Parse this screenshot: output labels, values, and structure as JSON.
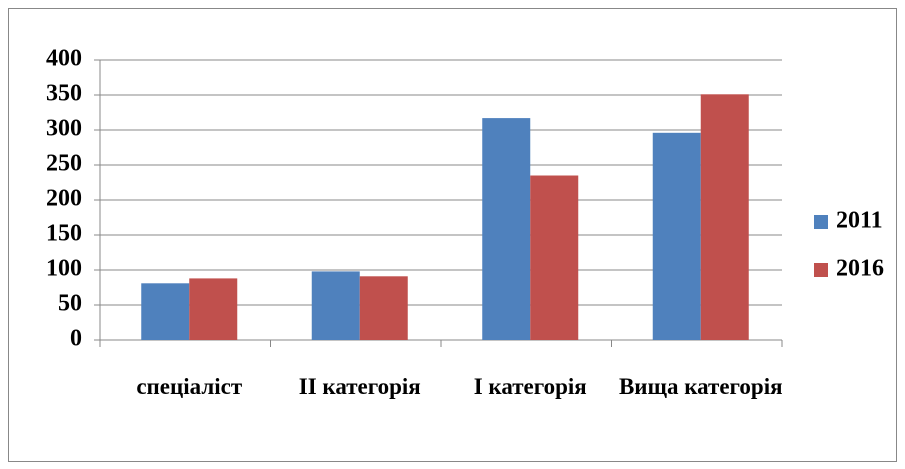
{
  "chart_data": {
    "type": "bar",
    "categories": [
      "спеціаліст",
      "ІІ категорія",
      "І категорія",
      "Вища категорія"
    ],
    "series": [
      {
        "name": "2011",
        "color": "#4f81bd",
        "values": [
          81,
          98,
          317,
          296
        ]
      },
      {
        "name": "2016",
        "color": "#c0504d",
        "values": [
          88,
          91,
          235,
          351
        ]
      }
    ],
    "ylim": [
      0,
      400
    ],
    "yticks": [
      0,
      50,
      100,
      150,
      200,
      250,
      300,
      350,
      400
    ],
    "grid": true,
    "legend": "right"
  }
}
